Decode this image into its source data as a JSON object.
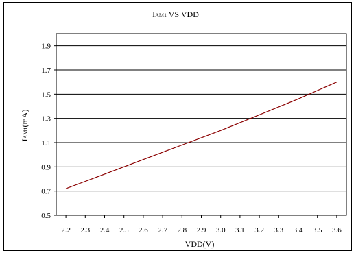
{
  "chart_data": {
    "type": "line",
    "title": "IAM1 VS VDD",
    "title_parts": {
      "main": "I",
      "sub": "AM1",
      "rest": " VS VDD"
    },
    "xlabel": "VDD(V)",
    "ylabel": "IAM1(mA)",
    "ylabel_parts": {
      "main": "I",
      "sub": "AM1",
      "rest": "(mA)"
    },
    "xlim": [
      2.15,
      3.65
    ],
    "ylim": [
      0.5,
      2.0
    ],
    "x_ticks": [
      2.2,
      2.3,
      2.4,
      2.5,
      2.6,
      2.7,
      2.8,
      2.9,
      3.0,
      3.1,
      3.2,
      3.3,
      3.4,
      3.5,
      3.6
    ],
    "x_tick_labels": [
      "2.2",
      "2.3",
      "2.4",
      "2.5",
      "2.6",
      "2.7",
      "2.8",
      "2.9",
      "3.0",
      "3.1",
      "3.2",
      "3.3",
      "3.4",
      "3.5",
      "3.6"
    ],
    "y_ticks": [
      0.5,
      0.7,
      0.9,
      1.1,
      1.3,
      1.5,
      1.7,
      1.9
    ],
    "y_tick_labels": [
      "0.5",
      "0.7",
      "0.9",
      "1.1",
      "1.3",
      "1.5",
      "1.7",
      "1.9"
    ],
    "grid": "horizontal",
    "series": [
      {
        "color": "#8b0000",
        "x": [
          2.2,
          2.3,
          2.4,
          2.5,
          2.6,
          2.7,
          2.8,
          2.9,
          3.0,
          3.1,
          3.2,
          3.3,
          3.4,
          3.5,
          3.6
        ],
        "y": [
          0.72,
          0.78,
          0.84,
          0.9,
          0.96,
          1.02,
          1.08,
          1.14,
          1.2,
          1.265,
          1.33,
          1.395,
          1.46,
          1.53,
          1.6
        ]
      }
    ]
  }
}
